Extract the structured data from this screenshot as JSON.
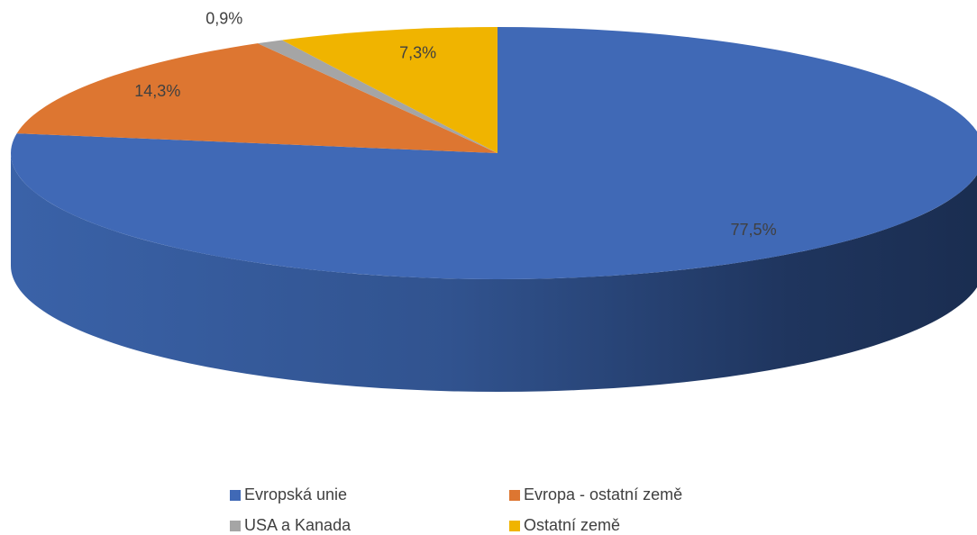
{
  "chart_data": {
    "type": "pie",
    "categories": [
      "Evropská unie",
      "Evropa - ostatní země",
      "USA a Kanada",
      "Ostatní země"
    ],
    "values": [
      77.5,
      14.3,
      0.9,
      7.3
    ],
    "value_labels": [
      "77,5%",
      "14,3%",
      "0,9%",
      "7,3%"
    ],
    "colors": [
      "#4069b6",
      "#dd7631",
      "#a5a5a5",
      "#f0b400"
    ],
    "legend": "bottom"
  }
}
